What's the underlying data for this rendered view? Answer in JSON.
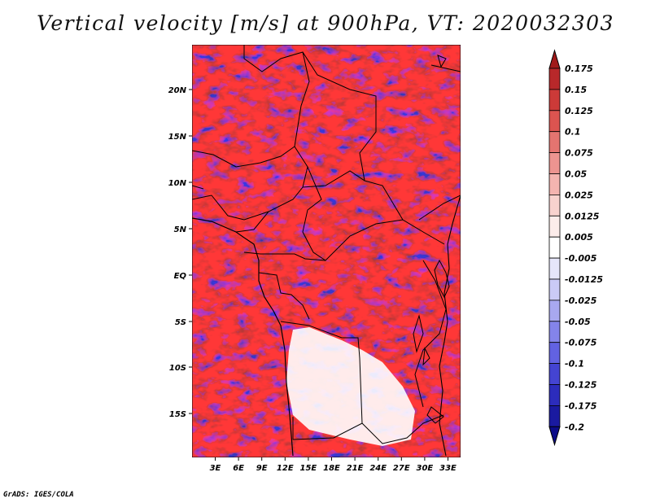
{
  "title": "Vertical velocity [m/s] at 900hPa, VT: 2020032303",
  "credit": "GrADS: IGES/COLA",
  "lat_labels": [
    "20N",
    "15N",
    "10N",
    "5N",
    "EQ",
    "5S",
    "10S",
    "15S"
  ],
  "lon_labels": [
    "3E",
    "6E",
    "9E",
    "12E",
    "15E",
    "18E",
    "21E",
    "24E",
    "27E",
    "30E",
    "33E"
  ],
  "colorbar": {
    "labels": [
      "0.175",
      "0.15",
      "0.125",
      "0.1",
      "0.075",
      "0.05",
      "0.025",
      "0.0125",
      "0.005",
      "-0.005",
      "-0.0125",
      "-0.025",
      "-0.05",
      "-0.075",
      "-0.1",
      "-0.125",
      "-0.175",
      "-0.2"
    ],
    "colors": [
      "#a01a1a",
      "#b8282a",
      "#cc3a38",
      "#dc5450",
      "#e47470",
      "#ec9490",
      "#f4b4b0",
      "#f8d2ce",
      "#fcecea",
      "#ffffff",
      "#e6e6fa",
      "#cacaf6",
      "#a8a8f0",
      "#8484ea",
      "#6262e2",
      "#4444d2",
      "#2c2cbc",
      "#1a1aa0",
      "#0c0c88"
    ]
  }
}
